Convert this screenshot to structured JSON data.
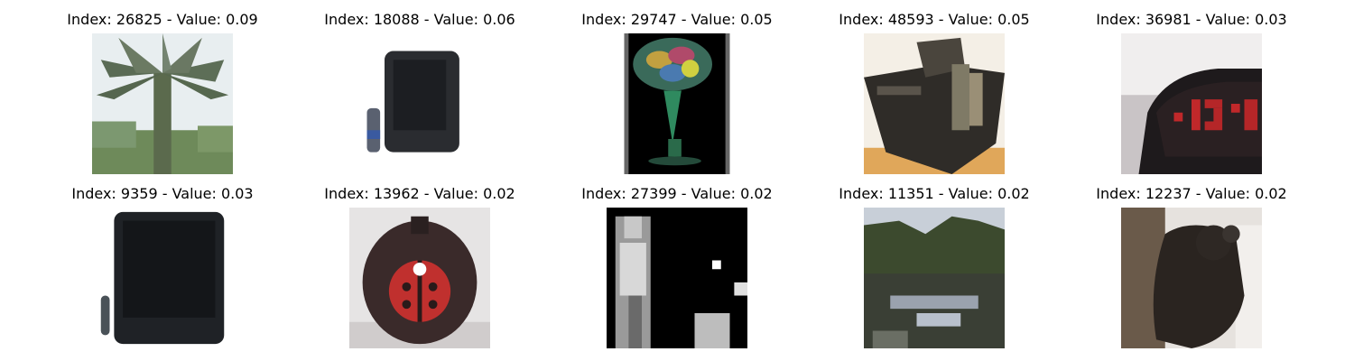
{
  "grid": {
    "items": [
      {
        "title": "Index: 26825 - Value: 0.09",
        "subject": "palm-tree-image"
      },
      {
        "title": "Index: 18088 - Value: 0.06",
        "subject": "television-image"
      },
      {
        "title": "Index: 29747 - Value: 0.05",
        "subject": "decorative-glass-image"
      },
      {
        "title": "Index: 48593 - Value: 0.05",
        "subject": "tank-image"
      },
      {
        "title": "Index: 36981 - Value: 0.03",
        "subject": "alarm-clock-image"
      },
      {
        "title": "Index: 9359 - Value: 0.03",
        "subject": "television-image"
      },
      {
        "title": "Index: 13962 - Value: 0.02",
        "subject": "ladybug-image"
      },
      {
        "title": "Index: 27399 - Value: 0.02",
        "subject": "grayscale-person-image"
      },
      {
        "title": "Index: 11351 - Value: 0.02",
        "subject": "lake-forest-image"
      },
      {
        "title": "Index: 12237 - Value: 0.02",
        "subject": "bear-image"
      }
    ]
  }
}
